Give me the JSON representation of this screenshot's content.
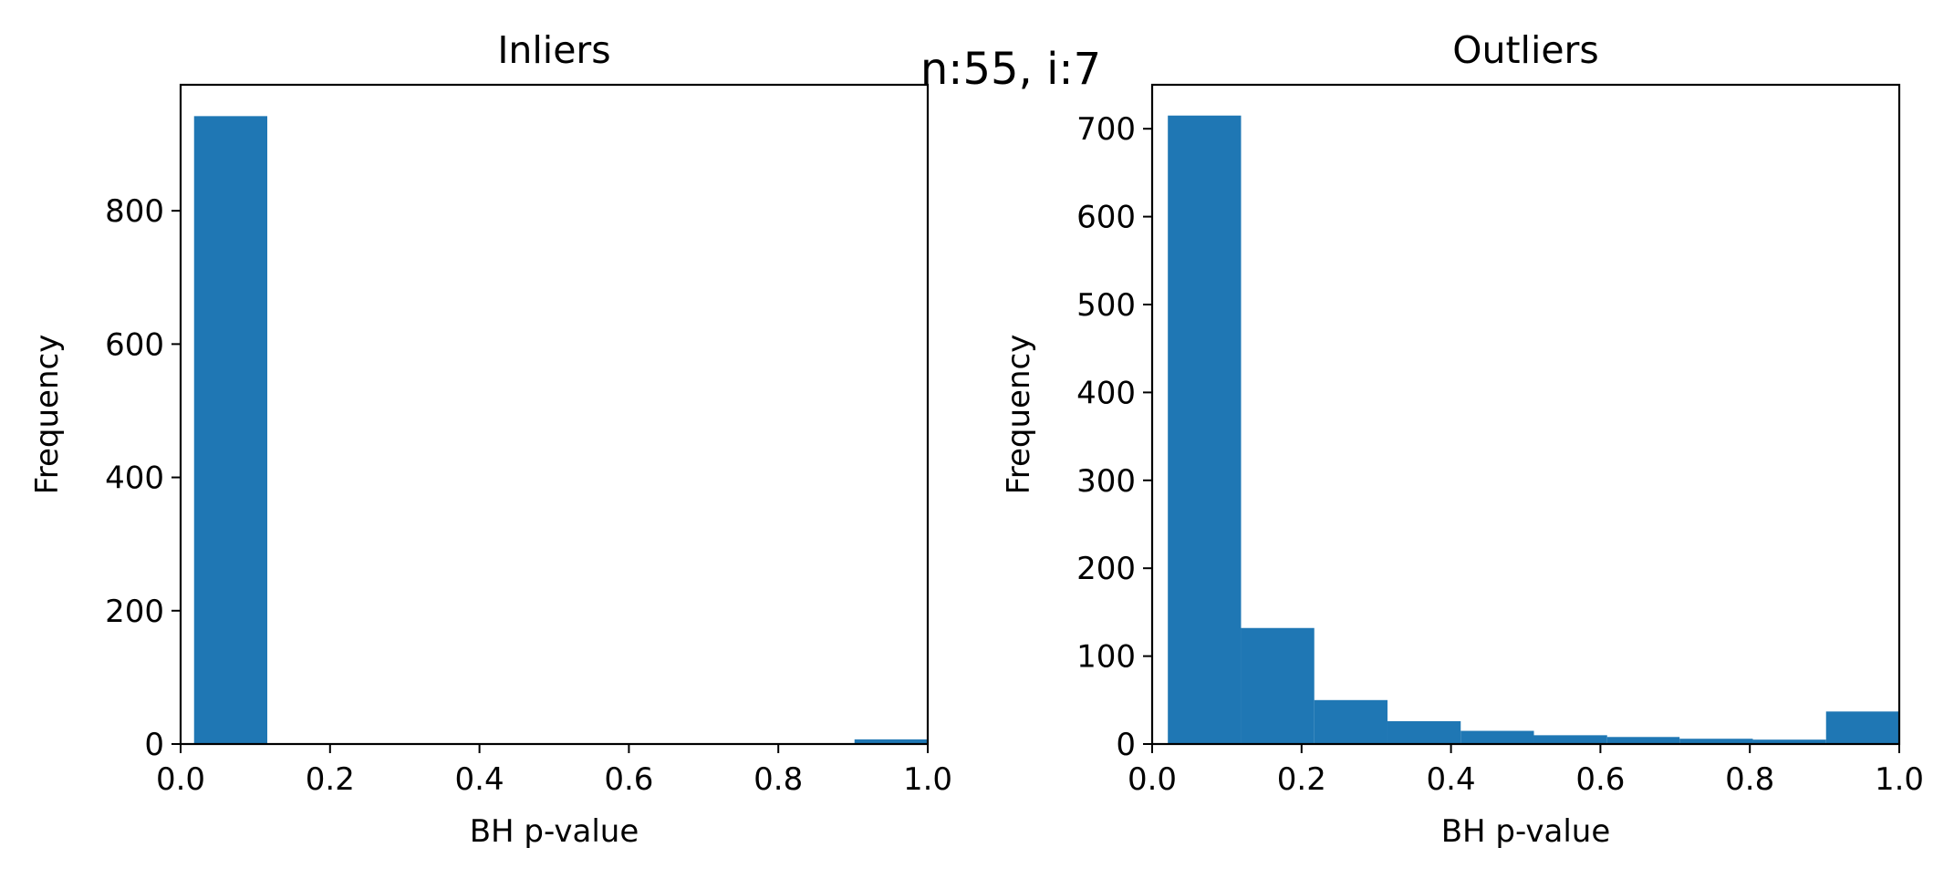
{
  "suptitle": "n:55, i:7",
  "bar_color": "#1f77b4",
  "chart_data": [
    {
      "type": "bar",
      "title": "Inliers",
      "xlabel": "BH p-value",
      "ylabel": "Frequency",
      "xlim": [
        0.0,
        1.0
      ],
      "ylim": [
        0,
        989
      ],
      "xticks": [
        "0.0",
        "0.2",
        "0.4",
        "0.6",
        "0.8",
        "1.0"
      ],
      "yticks": [
        "0",
        "200",
        "400",
        "600",
        "800"
      ],
      "grid": false,
      "bins": [
        {
          "x0": 0.018,
          "x1": 0.116,
          "value": 942
        },
        {
          "x0": 0.116,
          "x1": 0.214,
          "value": 0
        },
        {
          "x0": 0.214,
          "x1": 0.313,
          "value": 0
        },
        {
          "x0": 0.313,
          "x1": 0.411,
          "value": 0
        },
        {
          "x0": 0.411,
          "x1": 0.509,
          "value": 0
        },
        {
          "x0": 0.509,
          "x1": 0.607,
          "value": 0
        },
        {
          "x0": 0.607,
          "x1": 0.705,
          "value": 0
        },
        {
          "x0": 0.705,
          "x1": 0.804,
          "value": 0
        },
        {
          "x0": 0.804,
          "x1": 0.902,
          "value": 0
        },
        {
          "x0": 0.902,
          "x1": 1.0,
          "value": 7
        }
      ]
    },
    {
      "type": "bar",
      "title": "Outliers",
      "xlabel": "BH p-value",
      "ylabel": "Frequency",
      "xlim": [
        0.0,
        1.0
      ],
      "ylim": [
        0,
        750
      ],
      "xticks": [
        "0.0",
        "0.2",
        "0.4",
        "0.6",
        "0.8",
        "1.0"
      ],
      "yticks": [
        "0",
        "100",
        "200",
        "300",
        "400",
        "500",
        "600",
        "700"
      ],
      "grid": false,
      "bins": [
        {
          "x0": 0.021,
          "x1": 0.119,
          "value": 715
        },
        {
          "x0": 0.119,
          "x1": 0.217,
          "value": 132
        },
        {
          "x0": 0.217,
          "x1": 0.315,
          "value": 50
        },
        {
          "x0": 0.315,
          "x1": 0.413,
          "value": 26
        },
        {
          "x0": 0.413,
          "x1": 0.511,
          "value": 15
        },
        {
          "x0": 0.511,
          "x1": 0.609,
          "value": 10
        },
        {
          "x0": 0.609,
          "x1": 0.706,
          "value": 8
        },
        {
          "x0": 0.706,
          "x1": 0.804,
          "value": 6
        },
        {
          "x0": 0.804,
          "x1": 0.902,
          "value": 5
        },
        {
          "x0": 0.902,
          "x1": 1.0,
          "value": 37
        }
      ]
    }
  ]
}
